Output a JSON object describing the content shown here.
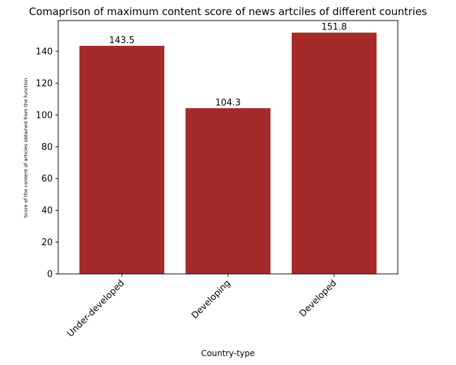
{
  "chart_data": {
    "type": "bar",
    "title": "Comaprison of maximum content score of news artciles of different countries",
    "xlabel": "Country-type",
    "ylabel": "Score of the content of articles obtained from the function",
    "categories": [
      "Under-developed",
      "Developing",
      "Developed"
    ],
    "values": [
      143.5,
      104.3,
      151.8
    ],
    "data_labels": [
      "143.5",
      "104.3",
      "151.8"
    ],
    "ylim": [
      0,
      159.4
    ],
    "yticks": [
      0,
      20,
      40,
      60,
      80,
      100,
      120,
      140
    ],
    "xtick_rotation": 45,
    "bar_color": "#a52a2a",
    "grid": false,
    "legend": null
  }
}
